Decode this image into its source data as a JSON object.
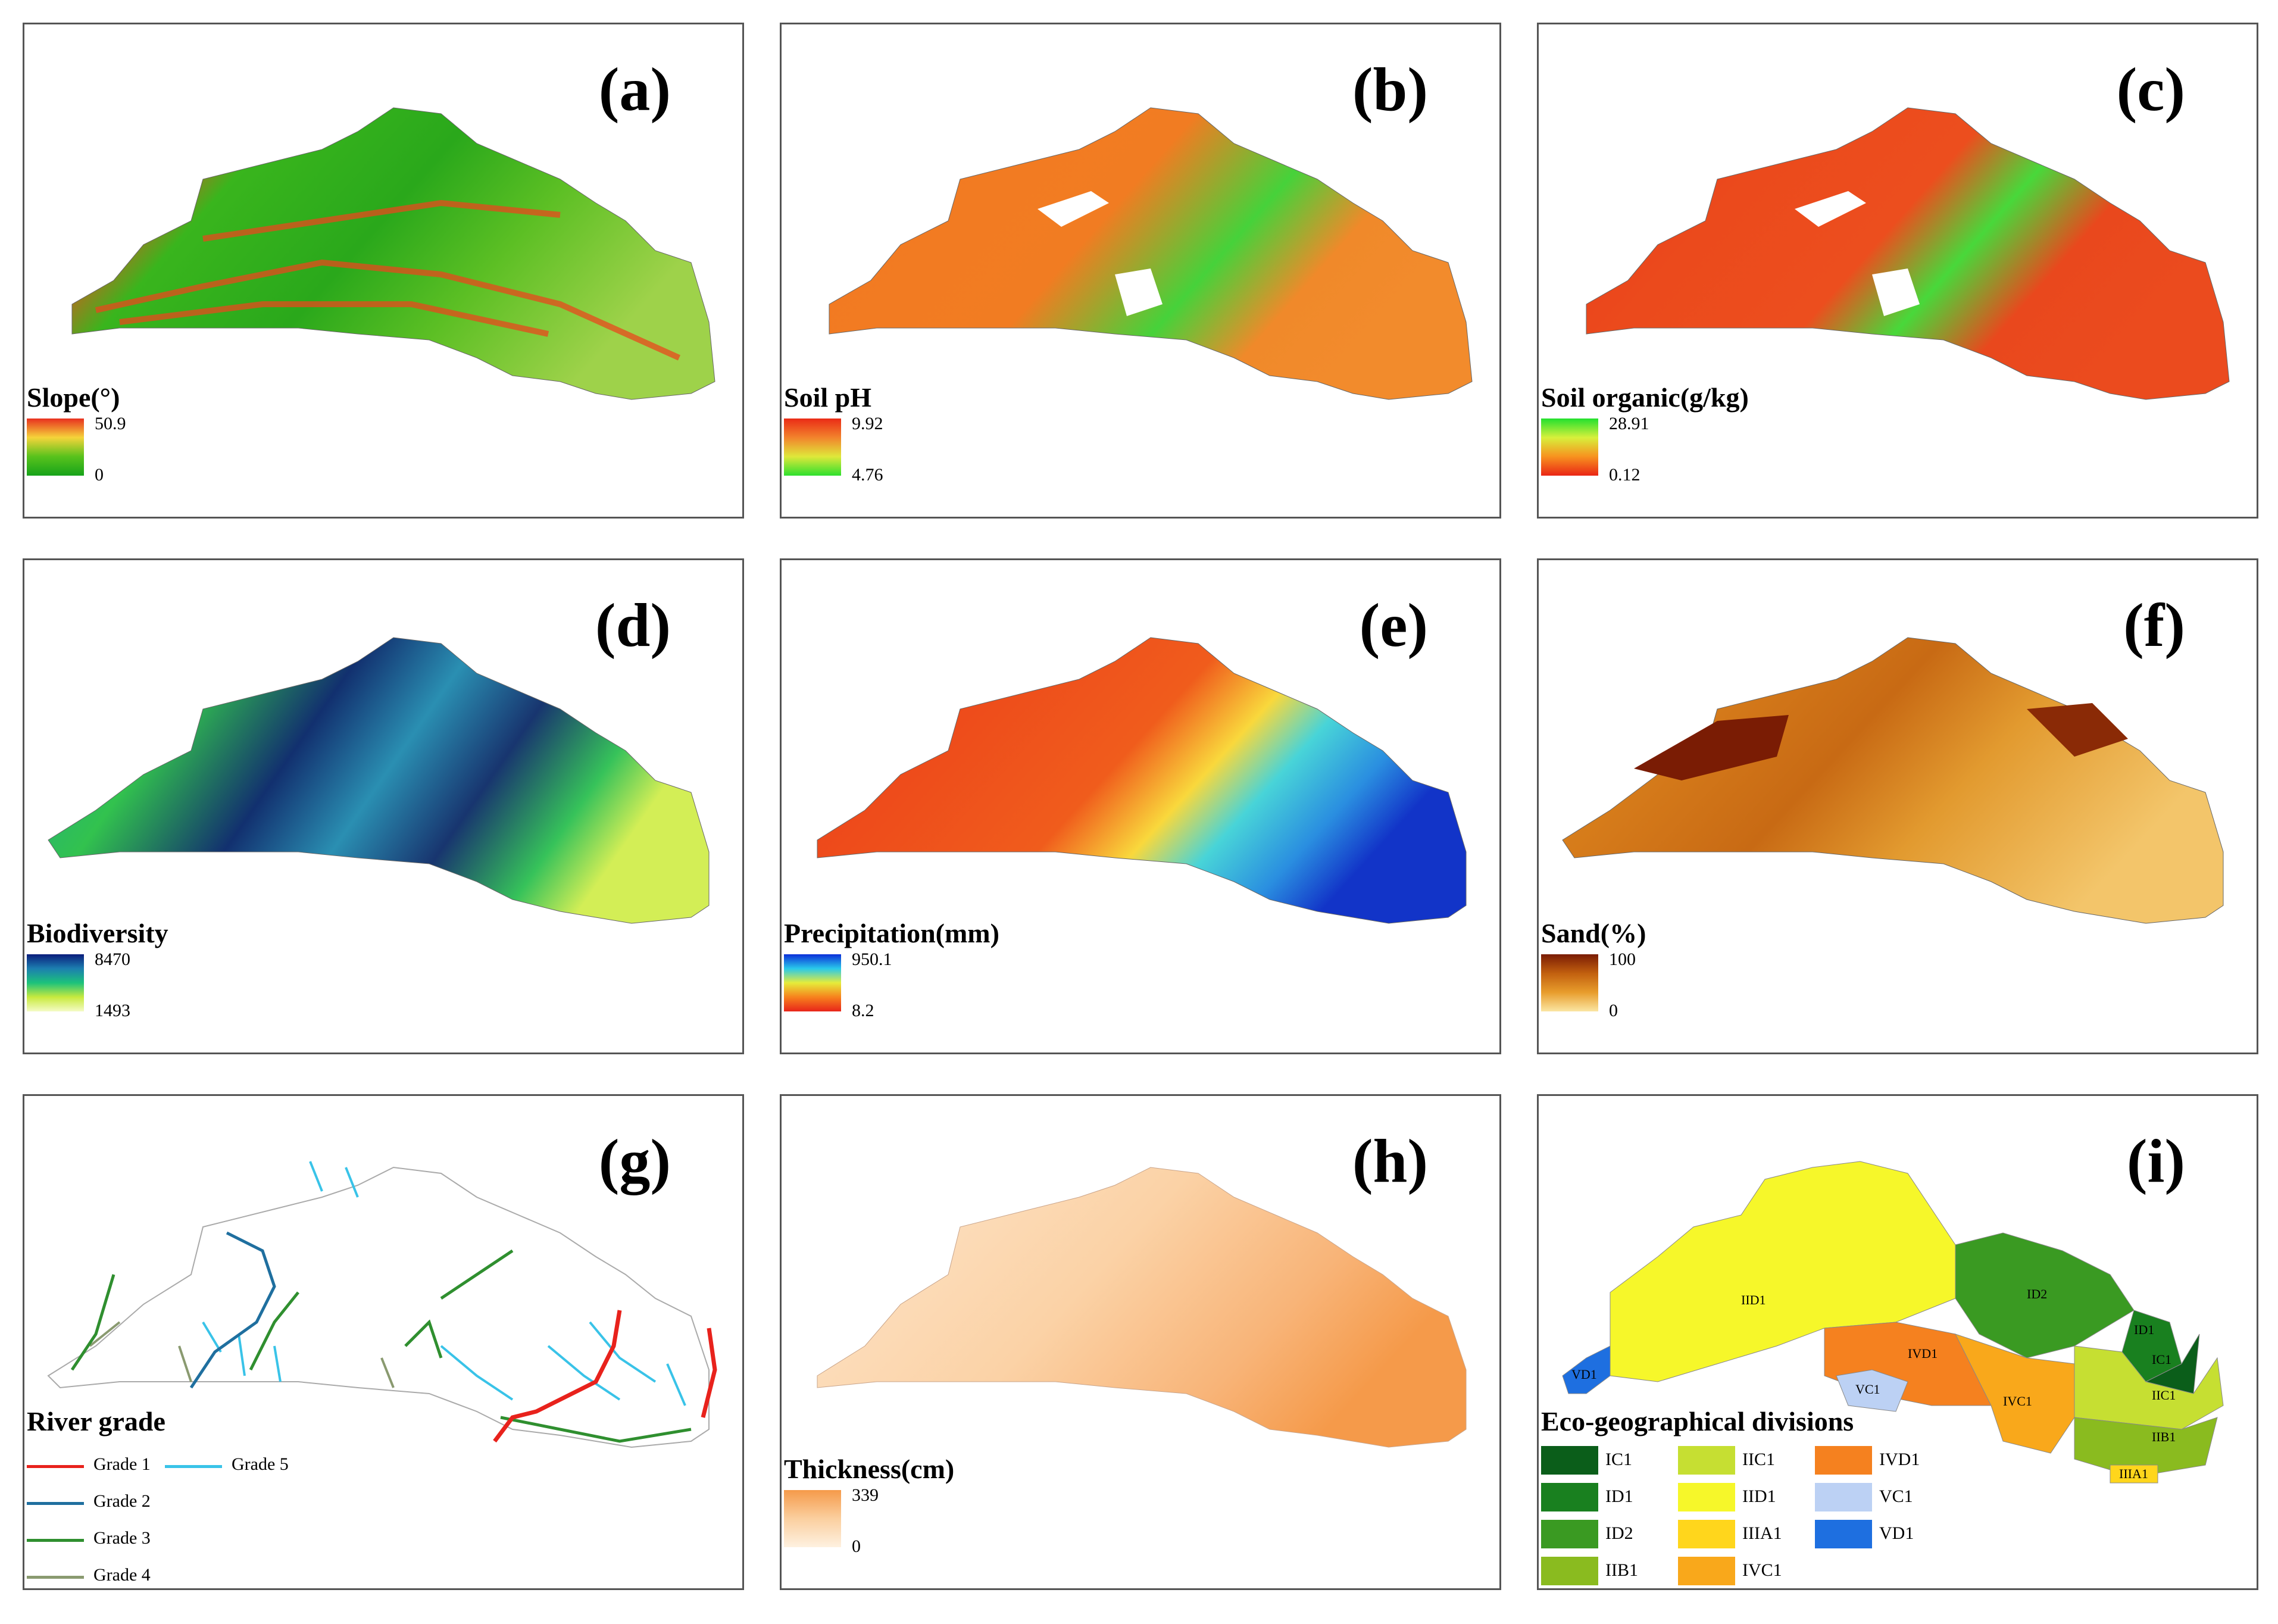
{
  "panels": {
    "a": {
      "letter": "(a)",
      "legend_title": "Slope(°)",
      "max": "50.9",
      "min": "0",
      "ramp": [
        "#e8301f",
        "#f5d43a",
        "#58c21c",
        "#17a31a"
      ]
    },
    "b": {
      "letter": "(b)",
      "legend_title": "Soil pH",
      "max": "9.92",
      "min": "4.76",
      "ramp": [
        "#ea2b16",
        "#f2832c",
        "#dfe83a",
        "#2ee02e"
      ]
    },
    "c": {
      "letter": "(c)",
      "legend_title": "Soil organic(g/kg)",
      "max": "28.91",
      "min": "0.12",
      "ramp": [
        "#22e02e",
        "#d7f03b",
        "#f7921f",
        "#ea2515"
      ]
    },
    "d": {
      "letter": "(d)",
      "legend_title": "Biodiversity",
      "max": "8470",
      "min": "1493",
      "ramp": [
        "#0a1d7c",
        "#1c7fb0",
        "#1cc27b",
        "#c8ea3e",
        "#f4fbc6"
      ]
    },
    "e": {
      "letter": "(e)",
      "legend_title": "Precipitation(mm)",
      "max": "950.1",
      "min": "8.2",
      "ramp": [
        "#0b2fd9",
        "#29c9ea",
        "#e6ec3a",
        "#f7821d",
        "#e8241a"
      ]
    },
    "f": {
      "letter": "(f)",
      "legend_title": "Sand(%)",
      "max": "100",
      "min": "0",
      "ramp": [
        "#7a1c04",
        "#c2600f",
        "#e89d2c",
        "#fbe6a3"
      ]
    },
    "g": {
      "letter": "(g)",
      "legend_title": "River grade",
      "grades": [
        {
          "label": "Grade 1",
          "color": "#e8221c"
        },
        {
          "label": "Grade 2",
          "color": "#1f6f9f"
        },
        {
          "label": "Grade 3",
          "color": "#2f8f2f"
        },
        {
          "label": "Grade 4",
          "color": "#8a9a70"
        },
        {
          "label": "Grade 5",
          "color": "#39c3e8"
        }
      ]
    },
    "h": {
      "letter": "(h)",
      "legend_title": "Thickness(cm)",
      "max": "339",
      "min": "0",
      "ramp": [
        "#f59a4a",
        "#fbcf9f",
        "#fef1e0"
      ]
    },
    "i": {
      "letter": "(i)",
      "legend_title": "Eco-geographical divisions",
      "divisions": [
        {
          "label": "IC1",
          "color": "#0b5e1a"
        },
        {
          "label": "ID1",
          "color": "#19801f"
        },
        {
          "label": "ID2",
          "color": "#3a9a22"
        },
        {
          "label": "IIB1",
          "color": "#8abb1f"
        },
        {
          "label": "IIC1",
          "color": "#c6df32"
        },
        {
          "label": "IID1",
          "color": "#f6f72a"
        },
        {
          "label": "IIIA1",
          "color": "#ffd61c"
        },
        {
          "label": "IVC1",
          "color": "#f9a81b"
        },
        {
          "label": "IVD1",
          "color": "#f5811f"
        },
        {
          "label": "VC1",
          "color": "#bcd1f4"
        },
        {
          "label": "VD1",
          "color": "#1e6fe0"
        }
      ],
      "region_labels": [
        "IID1",
        "ID2",
        "ID1",
        "IC1",
        "IVD1",
        "VC1",
        "IVC1",
        "IIC1",
        "IIB1",
        "IIIA1",
        "VD1"
      ]
    }
  }
}
